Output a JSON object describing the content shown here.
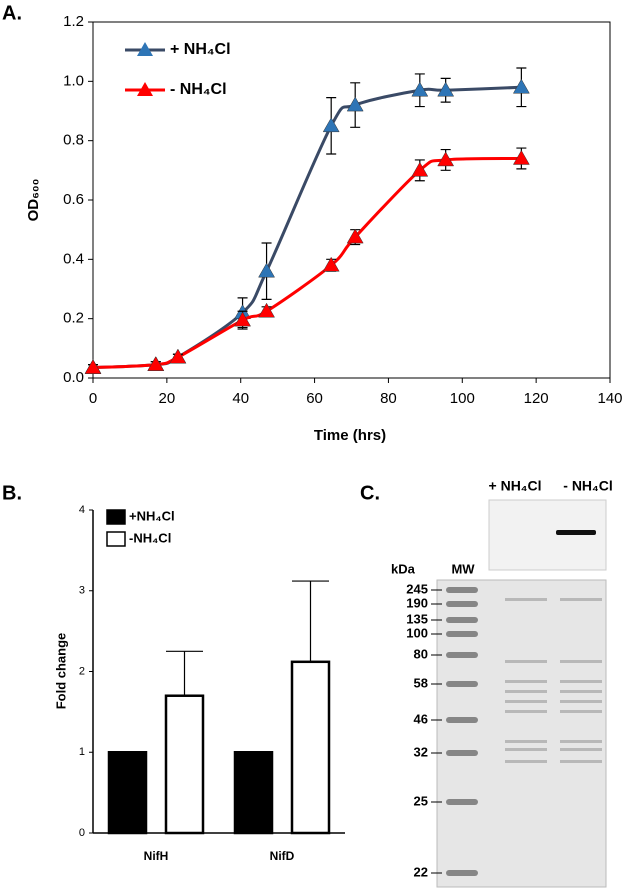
{
  "chart_data": [
    {
      "type": "line",
      "panel_label": "A.",
      "x_label": "Time (hrs)",
      "y_label": "OD₆₀₀",
      "x": [
        0,
        17,
        23,
        40.5,
        47,
        64.5,
        71,
        88.5,
        95.5,
        116
      ],
      "series": [
        {
          "name": "+ NH₄Cl",
          "color": "#3a4a66",
          "marker_color": "#2e75b6",
          "values": [
            0.035,
            0.045,
            0.07,
            0.22,
            0.36,
            0.85,
            0.92,
            0.97,
            0.97,
            0.98
          ],
          "errors": [
            0.01,
            0.01,
            0.01,
            0.05,
            0.095,
            0.095,
            0.075,
            0.055,
            0.04,
            0.065
          ]
        },
        {
          "name": "- NH₄Cl",
          "color": "#ff0000",
          "marker_color": "#ff0000",
          "values": [
            0.035,
            0.045,
            0.07,
            0.195,
            0.225,
            0.38,
            0.475,
            0.7,
            0.735,
            0.74
          ],
          "errors": [
            0.01,
            0.01,
            0.01,
            0.03,
            0.015,
            0.02,
            0.025,
            0.035,
            0.035,
            0.035
          ]
        }
      ],
      "xlim": [
        0,
        140
      ],
      "xticks": [
        0,
        20,
        40,
        60,
        80,
        100,
        120,
        140
      ],
      "ylim": [
        0,
        1.2
      ],
      "yticks": [
        {
          "value": 0,
          "label": "0.0"
        },
        {
          "value": 0.2,
          "label": "0.2"
        },
        {
          "value": 0.4,
          "label": "0.4"
        },
        {
          "value": 0.6,
          "label": "0.6"
        },
        {
          "value": 0.8,
          "label": "0.8"
        },
        {
          "value": 1,
          "label": "1.0"
        },
        {
          "value": 1.2,
          "label": "1.2"
        }
      ]
    },
    {
      "type": "bar",
      "panel_label": "B.",
      "y_label": "Fold change",
      "categories": [
        "NifH",
        "NifD"
      ],
      "series": [
        {
          "name": "+NH₄Cl",
          "color": "#000000",
          "values": [
            1,
            1
          ]
        },
        {
          "name": "-NH₄Cl",
          "color": "#ffffff",
          "values": [
            1.7,
            2.12
          ],
          "errors": [
            0.55,
            1.0
          ]
        }
      ],
      "ylim": [
        0,
        4
      ],
      "yticks": [
        0,
        1,
        2,
        3,
        4
      ]
    }
  ],
  "gel": {
    "panel_label": "C.",
    "lanes": [
      "+ NH₄Cl",
      "- NH₄Cl"
    ],
    "unit": "kDa",
    "ladder_label": "MW",
    "markers": [
      "245",
      "190",
      "135",
      "100",
      "80",
      "58",
      "46",
      "32",
      "25",
      "22"
    ]
  }
}
